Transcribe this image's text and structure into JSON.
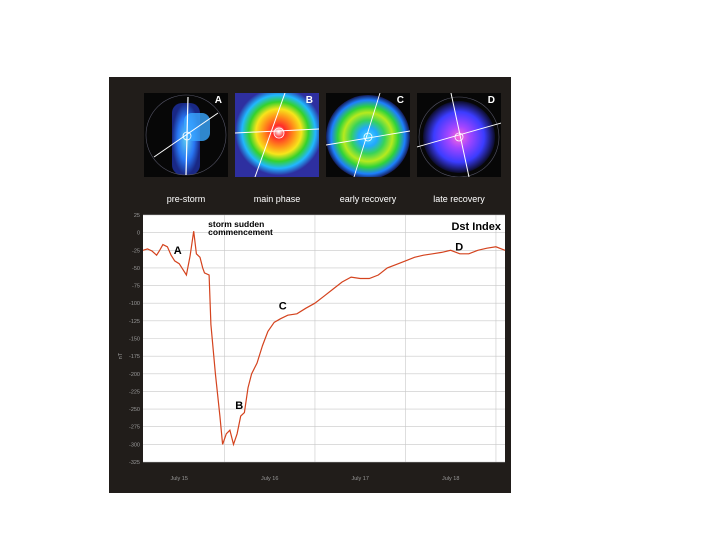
{
  "panels": [
    {
      "letter": "A",
      "caption": "pre-storm"
    },
    {
      "letter": "B",
      "caption": "main phase"
    },
    {
      "letter": "C",
      "caption": "early recovery"
    },
    {
      "letter": "D",
      "caption": "late recovery"
    }
  ],
  "colors": {
    "panel_bg": "#211d1a",
    "plot_bg": "#ffffff",
    "grid": "#c8c8c8",
    "line": "#d4431e",
    "text": "#ffffff",
    "axis_text": "#9a9a9a"
  },
  "chart_data": {
    "type": "line",
    "title": "Dst Index",
    "xlabel": "",
    "ylabel": "nT",
    "grid": true,
    "xlim": [
      15.6,
      19.6
    ],
    "ylim": [
      -325,
      25
    ],
    "yticks": [
      25,
      0,
      -25,
      -50,
      -75,
      -100,
      -125,
      -150,
      -175,
      -200,
      -225,
      -250,
      -275,
      -300,
      -325
    ],
    "xticks": [
      {
        "value": 16.0,
        "label": "July 15"
      },
      {
        "value": 17.0,
        "label": "July 16"
      },
      {
        "value": 18.0,
        "label": "July 17"
      },
      {
        "value": 19.0,
        "label": "July 18"
      }
    ],
    "annotations": [
      {
        "text": "storm sudden",
        "x": 16.32,
        "y": 8
      },
      {
        "text": "commencement",
        "x": 16.32,
        "y": -3
      },
      {
        "text": "A",
        "x": 15.94,
        "y": -30
      },
      {
        "text": "B",
        "x": 16.62,
        "y": -250
      },
      {
        "text": "C",
        "x": 17.1,
        "y": -109
      },
      {
        "text": "D",
        "x": 19.05,
        "y": -25
      }
    ],
    "series": [
      {
        "values": [
          [
            15.6,
            -25
          ],
          [
            15.65,
            -23
          ],
          [
            15.7,
            -26
          ],
          [
            15.75,
            -32
          ],
          [
            15.78,
            -26
          ],
          [
            15.82,
            -17
          ],
          [
            15.87,
            -20
          ],
          [
            15.91,
            -32
          ],
          [
            15.95,
            -40
          ],
          [
            16.0,
            -44
          ],
          [
            16.04,
            -52
          ],
          [
            16.08,
            -60
          ],
          [
            16.12,
            -33
          ],
          [
            16.16,
            2
          ],
          [
            16.19,
            -30
          ],
          [
            16.23,
            -35
          ],
          [
            16.26,
            -50
          ],
          [
            16.28,
            -57
          ],
          [
            16.33,
            -60
          ],
          [
            16.35,
            -130
          ],
          [
            16.4,
            -200
          ],
          [
            16.45,
            -260
          ],
          [
            16.48,
            -300
          ],
          [
            16.52,
            -285
          ],
          [
            16.56,
            -280
          ],
          [
            16.6,
            -300
          ],
          [
            16.64,
            -285
          ],
          [
            16.68,
            -260
          ],
          [
            16.72,
            -255
          ],
          [
            16.76,
            -220
          ],
          [
            16.8,
            -200
          ],
          [
            16.86,
            -185
          ],
          [
            16.92,
            -160
          ],
          [
            16.98,
            -140
          ],
          [
            17.05,
            -127
          ],
          [
            17.12,
            -122
          ],
          [
            17.2,
            -117
          ],
          [
            17.3,
            -115
          ],
          [
            17.4,
            -107
          ],
          [
            17.5,
            -100
          ],
          [
            17.6,
            -90
          ],
          [
            17.7,
            -80
          ],
          [
            17.8,
            -70
          ],
          [
            17.9,
            -63
          ],
          [
            18.0,
            -65
          ],
          [
            18.1,
            -65
          ],
          [
            18.2,
            -60
          ],
          [
            18.3,
            -50
          ],
          [
            18.4,
            -45
          ],
          [
            18.5,
            -40
          ],
          [
            18.6,
            -35
          ],
          [
            18.7,
            -32
          ],
          [
            18.8,
            -30
          ],
          [
            18.9,
            -28
          ],
          [
            19.0,
            -25
          ],
          [
            19.1,
            -30
          ],
          [
            19.2,
            -30
          ],
          [
            19.3,
            -25
          ],
          [
            19.4,
            -22
          ],
          [
            19.5,
            -20
          ],
          [
            19.6,
            -25
          ]
        ]
      }
    ]
  }
}
